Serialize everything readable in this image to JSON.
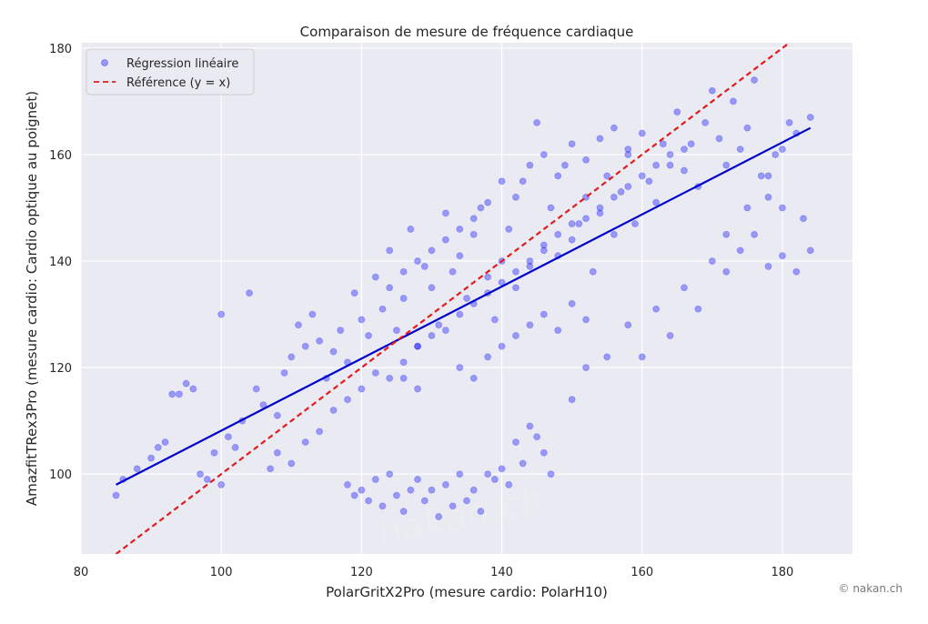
{
  "chart_data": {
    "type": "scatter",
    "title": "Comparaison de mesure de fréquence cardiaque",
    "xlabel": "PolarGritX2Pro (mesure cardio: PolarH10)",
    "ylabel": "AmazfitTRex3Pro (mesure cardio: Cardio optique au poignet)",
    "xlim": [
      80,
      190
    ],
    "ylim": [
      85,
      181
    ],
    "xticks": [
      80,
      100,
      120,
      140,
      160,
      180
    ],
    "yticks": [
      100,
      120,
      140,
      160,
      180
    ],
    "grid": true,
    "legend_position": "top-left",
    "series": [
      {
        "name": "Régression linéaire",
        "kind": "scatter",
        "color": "#0000ff",
        "alpha": 0.35,
        "points": [
          [
            85,
            96
          ],
          [
            86,
            99
          ],
          [
            88,
            101
          ],
          [
            90,
            103
          ],
          [
            91,
            105
          ],
          [
            92,
            106
          ],
          [
            93,
            115
          ],
          [
            94,
            115
          ],
          [
            95,
            117
          ],
          [
            96,
            116
          ],
          [
            97,
            100
          ],
          [
            98,
            99
          ],
          [
            99,
            104
          ],
          [
            100,
            130
          ],
          [
            100,
            98
          ],
          [
            101,
            107
          ],
          [
            102,
            105
          ],
          [
            103,
            110
          ],
          [
            104,
            134
          ],
          [
            105,
            116
          ],
          [
            106,
            113
          ],
          [
            107,
            101
          ],
          [
            108,
            111
          ],
          [
            109,
            119
          ],
          [
            110,
            122
          ],
          [
            111,
            128
          ],
          [
            112,
            124
          ],
          [
            113,
            130
          ],
          [
            114,
            125
          ],
          [
            115,
            118
          ],
          [
            116,
            123
          ],
          [
            117,
            127
          ],
          [
            118,
            121
          ],
          [
            119,
            134
          ],
          [
            120,
            129
          ],
          [
            121,
            126
          ],
          [
            122,
            137
          ],
          [
            123,
            131
          ],
          [
            124,
            142
          ],
          [
            125,
            127
          ],
          [
            126,
            133
          ],
          [
            127,
            146
          ],
          [
            128,
            124
          ],
          [
            129,
            139
          ],
          [
            130,
            135
          ],
          [
            131,
            128
          ],
          [
            132,
            149
          ],
          [
            133,
            138
          ],
          [
            134,
            141
          ],
          [
            135,
            133
          ],
          [
            136,
            145
          ],
          [
            137,
            150
          ],
          [
            138,
            137
          ],
          [
            139,
            129
          ],
          [
            140,
            140
          ],
          [
            141,
            146
          ],
          [
            142,
            135
          ],
          [
            143,
            155
          ],
          [
            144,
            139
          ],
          [
            145,
            166
          ],
          [
            146,
            143
          ],
          [
            147,
            150
          ],
          [
            148,
            141
          ],
          [
            149,
            158
          ],
          [
            150,
            144
          ],
          [
            151,
            147
          ],
          [
            152,
            152
          ],
          [
            153,
            138
          ],
          [
            154,
            149
          ],
          [
            155,
            156
          ],
          [
            156,
            145
          ],
          [
            157,
            153
          ],
          [
            158,
            160
          ],
          [
            159,
            147
          ],
          [
            160,
            164
          ],
          [
            161,
            155
          ],
          [
            162,
            151
          ],
          [
            163,
            162
          ],
          [
            164,
            158
          ],
          [
            165,
            168
          ],
          [
            166,
            157
          ],
          [
            167,
            162
          ],
          [
            168,
            154
          ],
          [
            169,
            166
          ],
          [
            170,
            172
          ],
          [
            171,
            163
          ],
          [
            172,
            158
          ],
          [
            173,
            170
          ],
          [
            174,
            161
          ],
          [
            175,
            165
          ],
          [
            176,
            174
          ],
          [
            177,
            156
          ],
          [
            178,
            152
          ],
          [
            179,
            160
          ],
          [
            180,
            161
          ],
          [
            181,
            166
          ],
          [
            182,
            164
          ],
          [
            183,
            148
          ],
          [
            184,
            142
          ],
          [
            184,
            167
          ],
          [
            118,
            98
          ],
          [
            119,
            96
          ],
          [
            120,
            97
          ],
          [
            121,
            95
          ],
          [
            122,
            99
          ],
          [
            123,
            94
          ],
          [
            124,
            100
          ],
          [
            125,
            96
          ],
          [
            126,
            93
          ],
          [
            127,
            97
          ],
          [
            128,
            99
          ],
          [
            129,
            95
          ],
          [
            130,
            97
          ],
          [
            131,
            92
          ],
          [
            132,
            98
          ],
          [
            133,
            94
          ],
          [
            134,
            100
          ],
          [
            135,
            95
          ],
          [
            136,
            97
          ],
          [
            137,
            93
          ],
          [
            138,
            100
          ],
          [
            139,
            99
          ],
          [
            140,
            101
          ],
          [
            141,
            98
          ],
          [
            142,
            106
          ],
          [
            143,
            102
          ],
          [
            144,
            109
          ],
          [
            145,
            107
          ],
          [
            146,
            104
          ],
          [
            147,
            100
          ],
          [
            150,
            114
          ],
          [
            152,
            120
          ],
          [
            155,
            122
          ],
          [
            158,
            128
          ],
          [
            160,
            122
          ],
          [
            162,
            131
          ],
          [
            164,
            126
          ],
          [
            166,
            135
          ],
          [
            168,
            131
          ],
          [
            170,
            140
          ],
          [
            172,
            138
          ],
          [
            174,
            142
          ],
          [
            176,
            145
          ],
          [
            178,
            139
          ],
          [
            180,
            141
          ],
          [
            182,
            138
          ],
          [
            180,
            150
          ],
          [
            178,
            156
          ],
          [
            175,
            150
          ],
          [
            172,
            145
          ],
          [
            108,
            104
          ],
          [
            110,
            102
          ],
          [
            112,
            106
          ],
          [
            114,
            108
          ],
          [
            116,
            112
          ],
          [
            118,
            114
          ],
          [
            120,
            116
          ],
          [
            122,
            119
          ],
          [
            124,
            118
          ],
          [
            126,
            121
          ],
          [
            128,
            124
          ],
          [
            130,
            126
          ],
          [
            132,
            127
          ],
          [
            134,
            130
          ],
          [
            136,
            132
          ],
          [
            138,
            134
          ],
          [
            140,
            136
          ],
          [
            142,
            138
          ],
          [
            144,
            140
          ],
          [
            146,
            142
          ],
          [
            148,
            145
          ],
          [
            150,
            147
          ],
          [
            152,
            148
          ],
          [
            154,
            150
          ],
          [
            156,
            152
          ],
          [
            158,
            154
          ],
          [
            160,
            156
          ],
          [
            162,
            158
          ],
          [
            164,
            160
          ],
          [
            166,
            161
          ],
          [
            134,
            120
          ],
          [
            136,
            118
          ],
          [
            138,
            122
          ],
          [
            140,
            124
          ],
          [
            142,
            126
          ],
          [
            144,
            128
          ],
          [
            146,
            130
          ],
          [
            148,
            127
          ],
          [
            150,
            132
          ],
          [
            152,
            129
          ],
          [
            140,
            155
          ],
          [
            142,
            152
          ],
          [
            144,
            158
          ],
          [
            146,
            160
          ],
          [
            148,
            156
          ],
          [
            150,
            162
          ],
          [
            152,
            159
          ],
          [
            154,
            163
          ],
          [
            156,
            165
          ],
          [
            158,
            161
          ],
          [
            124,
            135
          ],
          [
            126,
            138
          ],
          [
            128,
            140
          ],
          [
            130,
            142
          ],
          [
            132,
            144
          ],
          [
            134,
            146
          ],
          [
            136,
            148
          ],
          [
            138,
            151
          ],
          [
            126,
            118
          ],
          [
            128,
            116
          ]
        ]
      },
      {
        "name": "",
        "kind": "fit-line",
        "color": "#0000cc",
        "x": [
          85,
          184
        ],
        "y": [
          98,
          165
        ]
      },
      {
        "name": "Référence (y = x)",
        "kind": "line",
        "color": "#e41a1c",
        "dash": "6,4",
        "x": [
          85,
          185
        ],
        "y": [
          85,
          185
        ]
      }
    ]
  },
  "copyright": "© nakan.ch",
  "watermark": "nakan.ch"
}
